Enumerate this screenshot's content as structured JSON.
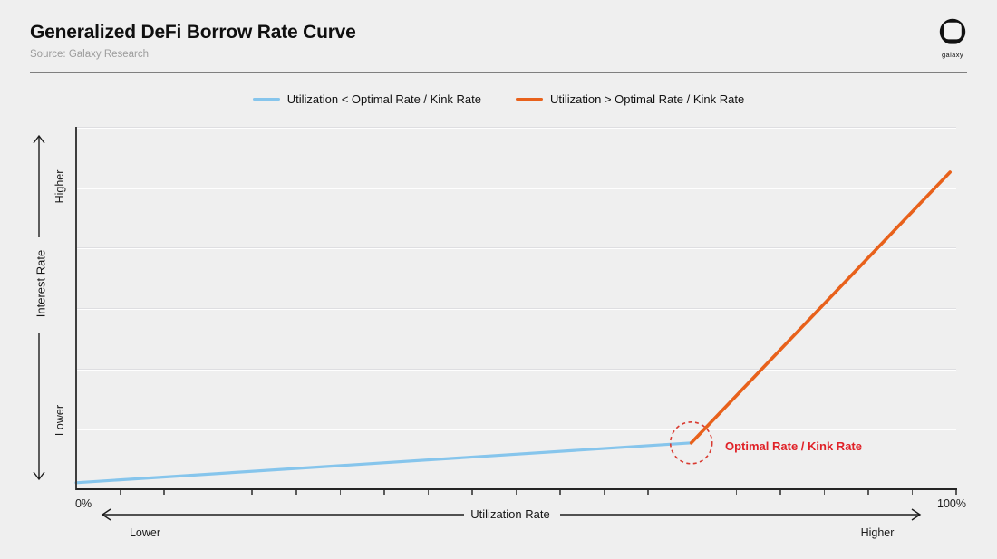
{
  "header": {
    "title": "Generalized DeFi Borrow Rate Curve",
    "source": "Source: Galaxy Research",
    "brand": "galaxy"
  },
  "legend": [
    {
      "label": "Utilization < Optimal Rate / Kink Rate",
      "color": "#86c5ec"
    },
    {
      "label": "Utilization > Optimal Rate / Kink Rate",
      "color": "#e8611b"
    }
  ],
  "axes": {
    "y_title": "Interest Rate",
    "y_high": "Higher",
    "y_low": "Lower",
    "x_title": "Utilization Rate",
    "x_low": "Lower",
    "x_high": "Higher",
    "x_min_label": "0%",
    "x_max_label": "100%"
  },
  "annotation": {
    "label": "Optimal Rate / Kink Rate",
    "text_color": "#e02127",
    "circle_color": "#d93a30"
  },
  "chart_data": {
    "type": "line",
    "title": "Generalized DeFi Borrow Rate Curve",
    "xlabel": "Utilization Rate",
    "ylabel": "Interest Rate (relative, Lower to Higher)",
    "x_range_percent": [
      0,
      100
    ],
    "y_range_relative": [
      0,
      1
    ],
    "grid": "horizontal",
    "legend_position": "top-center",
    "kink": {
      "x": 69.9,
      "y": 0.128
    },
    "series": [
      {
        "name": "Utilization < Optimal Rate / Kink Rate",
        "color": "#86c5ec",
        "points": [
          [
            0,
            0.018
          ],
          [
            69.9,
            0.128
          ]
        ]
      },
      {
        "name": "Utilization > Optimal Rate / Kink Rate",
        "color": "#e8611b",
        "points": [
          [
            69.9,
            0.128
          ],
          [
            99.3,
            0.875
          ]
        ]
      }
    ],
    "annotations": [
      {
        "x": 69.9,
        "y": 0.128,
        "label": "Optimal Rate / Kink Rate",
        "marker": "dashed-red-circle"
      }
    ]
  }
}
